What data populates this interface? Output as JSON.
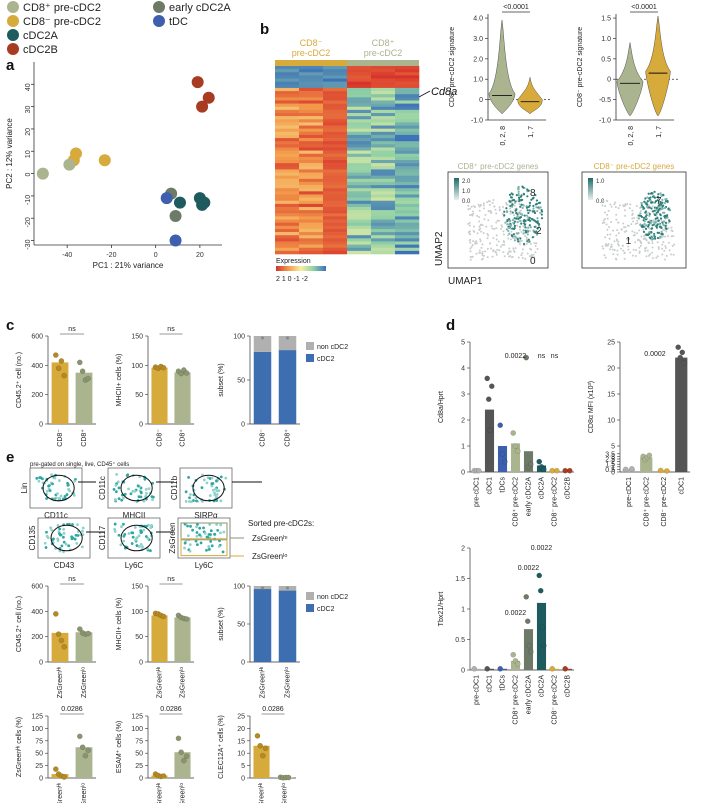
{
  "colors": {
    "cd8_pre": "#aab48f",
    "cd8neg_pre": "#d7aa3c",
    "cdc2a": "#1e5b5e",
    "cdc2b": "#a83c22",
    "early_cdc2a": "#6d7a67",
    "tdc": "#3d5fae",
    "grey": "#b0b0b0",
    "dark": "#555555"
  },
  "panel_labels": {
    "a": "a",
    "b": "b",
    "c": "c",
    "d": "d",
    "e": "e"
  },
  "legend": [
    {
      "label": "CD8⁺ pre-cDC2",
      "color": "#aab48f"
    },
    {
      "label": "CD8⁻ pre-cDC2",
      "color": "#d7aa3c"
    },
    {
      "label": "cDC2A",
      "color": "#1e5b5e"
    },
    {
      "label": "cDC2B",
      "color": "#a83c22"
    },
    {
      "label": "early cDC2A",
      "color": "#6d7a67"
    },
    {
      "label": "tDC",
      "color": "#3d5fae"
    }
  ],
  "chart_data": [
    {
      "id": "pca",
      "type": "scatter",
      "xlabel": "PC1 : 21% variance",
      "ylabel": "PC2 : 12% variance",
      "xlim": [
        -55,
        30
      ],
      "ylim": [
        -32,
        50
      ],
      "xticks": [
        -40,
        -20,
        0,
        20
      ],
      "yticks": [
        -30,
        -20,
        -10,
        0,
        10,
        20,
        30,
        40
      ],
      "series": [
        {
          "name": "CD8- pre-cDC2",
          "color": "#d7aa3c",
          "points": [
            [
              -36,
              9
            ],
            [
              -37,
              6
            ],
            [
              -23,
              6
            ]
          ]
        },
        {
          "name": "CD8+ pre-cDC2",
          "color": "#aab48f",
          "points": [
            [
              -51,
              0
            ],
            [
              -39,
              4
            ]
          ]
        },
        {
          "name": "cDC2B",
          "color": "#a83c22",
          "points": [
            [
              19,
              41
            ],
            [
              24,
              34
            ],
            [
              21,
              30
            ]
          ]
        },
        {
          "name": "early cDC2A",
          "color": "#6d7a67",
          "points": [
            [
              7,
              -9
            ],
            [
              9,
              -19
            ]
          ]
        },
        {
          "name": "tDC",
          "color": "#3d5fae",
          "points": [
            [
              5,
              -11
            ],
            [
              9,
              -30
            ]
          ]
        },
        {
          "name": "cDC2A",
          "color": "#1e5b5e",
          "points": [
            [
              11,
              -13
            ],
            [
              20,
              -11
            ],
            [
              21,
              -14
            ],
            [
              22,
              -13
            ]
          ]
        }
      ]
    },
    {
      "id": "heatmap",
      "type": "heatmap",
      "group_labels": [
        "CD8⁻\npre-cDC2",
        "CD8⁺\npre-cDC2"
      ],
      "gene_label": "Cd8a",
      "legend_title": "Expression",
      "legend_ticks": [
        "2",
        "1",
        "0",
        "-1",
        "-2"
      ]
    },
    {
      "id": "violin1",
      "type": "violin",
      "ylabel": "CD8⁺ pre-cDC2 signature",
      "pvalue": "<0.0001",
      "yticks": [
        -1.0,
        0,
        1.0,
        2.0,
        3.0,
        4.0
      ],
      "ylim": [
        -1.0,
        4.2
      ],
      "categories": [
        "0, 2, 8",
        "1, 7"
      ],
      "medians": [
        0.2,
        -0.1
      ]
    },
    {
      "id": "violin2",
      "type": "violin",
      "ylabel": "CD8⁻ pre-cDC2 signature",
      "pvalue": "<0.0001",
      "yticks": [
        -1.0,
        -0.5,
        0,
        0.5,
        1.0,
        1.5
      ],
      "ylim": [
        -1.0,
        1.6
      ],
      "categories": [
        "0, 2, 8",
        "1, 7"
      ],
      "medians": [
        -0.1,
        0.15
      ]
    },
    {
      "id": "umap1",
      "type": "umap",
      "title": "CD8⁺ pre-cDC2 genes",
      "scale": [
        "2.0",
        "1.0",
        "0.0"
      ],
      "cluster_labels": [
        "8",
        "2",
        "0"
      ],
      "xlabel": "UMAP1",
      "ylabel": "UMAP2"
    },
    {
      "id": "umap2",
      "type": "umap",
      "title": "CD8⁻ pre-cDC2 genes",
      "scale": [
        "1.0",
        "0.0"
      ],
      "cluster_labels": [
        "7",
        "1"
      ]
    },
    {
      "id": "c_cd45",
      "type": "bar",
      "ylabel": "CD45.2⁺ cell (no.)",
      "categories": [
        "CD8⁻",
        "CD8⁺"
      ],
      "values": [
        420,
        350
      ],
      "ylim": [
        0,
        600
      ],
      "yticks": [
        0,
        200,
        400,
        600
      ],
      "sig": "ns"
    },
    {
      "id": "c_mhcii",
      "type": "bar",
      "ylabel": "MHCII+ cells (%)",
      "categories": [
        "CD8⁻",
        "CD8⁺"
      ],
      "values": [
        96,
        88
      ],
      "ylim": [
        0,
        150
      ],
      "yticks": [
        0,
        50,
        100,
        150
      ],
      "sig": "ns"
    },
    {
      "id": "c_subset",
      "type": "stacked-bar",
      "ylabel": "subset (%)",
      "categories": [
        "CD8⁻",
        "CD8⁺"
      ],
      "series": [
        {
          "name": "cDC2",
          "color": "#3d6fb0",
          "values": [
            82,
            84
          ]
        },
        {
          "name": "non cDC2",
          "color": "#b0b0b0",
          "values": [
            18,
            16
          ]
        }
      ],
      "ylim": [
        0,
        100
      ],
      "yticks": [
        0,
        50,
        100
      ]
    },
    {
      "id": "e_cd45",
      "type": "bar",
      "ylabel": "CD45.2⁺ cell (no.)",
      "categories": [
        "ZsGreenᴴᶦ",
        "ZsGreenˡᵒ"
      ],
      "values": [
        230,
        235
      ],
      "ylim": [
        0,
        600
      ],
      "yticks": [
        0,
        200,
        400,
        600
      ],
      "sig": "ns"
    },
    {
      "id": "e_mhcii",
      "type": "bar",
      "ylabel": "MHCII+ cells (%)",
      "categories": [
        "ZsGreenᴴᶦ",
        "ZsGreenˡᵒ"
      ],
      "values": [
        92,
        88
      ],
      "ylim": [
        0,
        150
      ],
      "yticks": [
        0,
        50,
        100,
        150
      ],
      "sig": "ns"
    },
    {
      "id": "e_subset",
      "type": "stacked-bar",
      "ylabel": "subset (%)",
      "categories": [
        "ZsGreenᴴᶦ",
        "ZsGreenˡᵒ"
      ],
      "series": [
        {
          "name": "cDC2",
          "color": "#3d6fb0",
          "values": [
            96,
            94
          ]
        },
        {
          "name": "non cDC2",
          "color": "#b0b0b0",
          "values": [
            4,
            6
          ]
        }
      ],
      "ylim": [
        0,
        100
      ],
      "yticks": [
        0,
        50,
        100
      ]
    },
    {
      "id": "e_zs",
      "type": "bar",
      "ylabel": "ZsGreenᴴᶦ cells (%)",
      "categories": [
        "ZsGreenᴴᶦ",
        "ZsGreenˡᵒ"
      ],
      "values": [
        8,
        62
      ],
      "ylim": [
        0,
        125
      ],
      "yticks": [
        0,
        25,
        50,
        75,
        100,
        125
      ],
      "sig": "0.0286"
    },
    {
      "id": "e_esam",
      "type": "bar",
      "ylabel": "ESAM⁺ cells (%)",
      "categories": [
        "ZsGreenᴴᶦ",
        "ZsGreenˡᵒ"
      ],
      "values": [
        5,
        52
      ],
      "ylim": [
        0,
        125
      ],
      "yticks": [
        0,
        25,
        50,
        75,
        100,
        125
      ],
      "sig": "0.0286"
    },
    {
      "id": "e_clec",
      "type": "bar",
      "ylabel": "CLEC12A⁺ cells (%)",
      "categories": [
        "ZsGreenᴴᶦ",
        "ZsGreenˡᵒ"
      ],
      "values": [
        13,
        0.2
      ],
      "ylim": [
        0,
        25
      ],
      "yticks": [
        0,
        5,
        10,
        15,
        20,
        25
      ],
      "sig": "0.0286"
    },
    {
      "id": "d_cd8a",
      "type": "bar",
      "ylabel": "Cd8a/Hprt",
      "categories": [
        "pre-cDC1",
        "cDC1",
        "tDCs",
        "CD8⁺ pre-cDC2",
        "early cDC2A",
        "cDC2A",
        "CD8⁻ pre-cDC2",
        "cDC2B"
      ],
      "values": [
        0.05,
        2.4,
        1.0,
        1.1,
        0.8,
        0.25,
        0.05,
        0.05
      ],
      "ylim": [
        0,
        5.0
      ],
      "yticks": [
        0,
        1.0,
        2.0,
        3.0,
        4.0,
        5.0
      ],
      "annotations": [
        "0.0022",
        "ns",
        "ns"
      ]
    },
    {
      "id": "d_cd8mfi",
      "type": "bar",
      "ylabel": "CD8α MFI (x10³)",
      "categories": [
        "pre-cDC1",
        "CD8⁺ pre-cDC2",
        "CD8⁻ pre-cDC2",
        "cDC1"
      ],
      "values": [
        0.5,
        2.8,
        0.3,
        22
      ],
      "ylim": [
        0,
        25
      ],
      "yticks": [
        0,
        0.5,
        1.0,
        1.5,
        2.0,
        2.5,
        3.0,
        3.5,
        5,
        10,
        15,
        20,
        25
      ],
      "annotation": "0.0002"
    },
    {
      "id": "d_tbx21",
      "type": "bar",
      "ylabel": "Tbx21/Hprt",
      "categories": [
        "pre-cDC1",
        "cDC1",
        "tDCs",
        "CD8⁺ pre-cDC2",
        "early cDC2A",
        "cDC2A",
        "CD8⁻ pre-cDC2",
        "cDC2B"
      ],
      "values": [
        0.02,
        0.02,
        0.02,
        0.15,
        0.67,
        1.1,
        0.02,
        0.02
      ],
      "ylim": [
        0,
        2.0
      ],
      "yticks": [
        0,
        0.5,
        1.0,
        1.5,
        2.0
      ],
      "annotations": [
        "0.0022",
        "0.0022",
        "0.0022"
      ]
    }
  ],
  "flow": {
    "pregate": "pre-gated on single, live, CD45⁺ cells",
    "row1": [
      {
        "y": "Lin",
        "x": "CD11c"
      },
      {
        "y": "CD11c",
        "x": "MHCII"
      },
      {
        "y": "CD11b",
        "x": "SIRPα"
      }
    ],
    "row2": [
      {
        "y": "CD135",
        "x": "CD43"
      },
      {
        "y": "CD117",
        "x": "Ly6C"
      },
      {
        "y": "ZsGreen",
        "x": "Ly6C"
      }
    ],
    "sorted_title": "Sorted pre-cDC2s:",
    "gate_hi": "ZsGreenʰᶦ",
    "gate_lo": "ZsGreenˡᵒ"
  }
}
